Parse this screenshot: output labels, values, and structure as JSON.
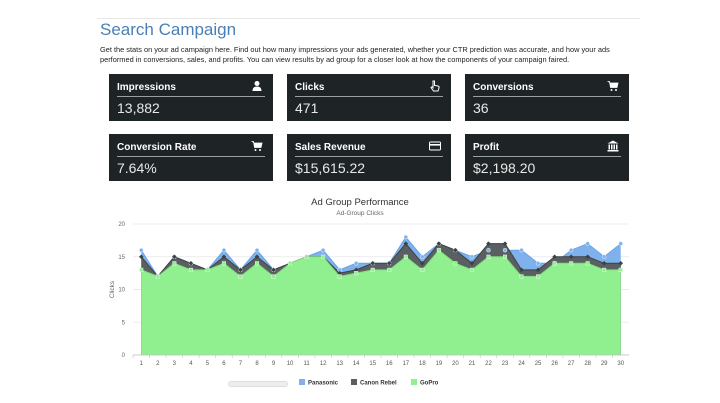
{
  "page": {
    "title": "Search Campaign",
    "description": "Get the stats on your ad campaign here. Find out how many impressions your ads generated, whether your CTR prediction was accurate, and how your ads performed in conversions, sales, and profits. You can view results by ad group for a closer look at how the components of your campaign faired."
  },
  "cards": [
    {
      "label": "Impressions",
      "value": "13,882",
      "icon": "user-icon"
    },
    {
      "label": "Clicks",
      "value": "471",
      "icon": "pointer-hand-icon"
    },
    {
      "label": "Conversions",
      "value": "36",
      "icon": "shopping-cart-icon"
    },
    {
      "label": "Conversion Rate",
      "value": "7.64%",
      "icon": "shopping-cart-icon"
    },
    {
      "label": "Sales Revenue",
      "value": "$15,615.22",
      "icon": "credit-card-icon"
    },
    {
      "label": "Profit",
      "value": "$2,198.20",
      "icon": "bank-icon"
    }
  ],
  "colors": {
    "title": "#4a7fb5",
    "card_bg": "#1e2426",
    "panasonic": "#7fb2ec",
    "canon_rebel": "#555a5c",
    "gopro": "#90ef8f"
  },
  "chart_data": {
    "type": "area",
    "title": "Ad Group Performance",
    "subtitle": "Ad-Group Clicks",
    "ylabel": "Clicks",
    "xlabel": "",
    "ylim": [
      0,
      20
    ],
    "yticks": [
      "0",
      "5",
      "10",
      "15",
      "20"
    ],
    "x": [
      1,
      2,
      3,
      4,
      5,
      6,
      7,
      8,
      9,
      10,
      11,
      12,
      13,
      14,
      15,
      16,
      17,
      18,
      19,
      20,
      21,
      22,
      23,
      24,
      25,
      26,
      27,
      28,
      29,
      30
    ],
    "legend_position": "bottom",
    "series": [
      {
        "name": "Panasonic",
        "values": [
          16,
          12,
          15,
          14,
          13,
          16,
          13,
          16,
          13,
          14,
          15,
          16,
          13,
          14,
          14,
          14,
          18,
          15,
          17,
          16,
          15,
          16,
          16,
          16,
          14,
          14,
          16,
          17,
          15,
          17
        ]
      },
      {
        "name": "Canon Rebel",
        "values": [
          15,
          12,
          15,
          14,
          13,
          15,
          13,
          15,
          13,
          14,
          15,
          15,
          12.5,
          13,
          14,
          14,
          17,
          14,
          17,
          16,
          14,
          17,
          17,
          13,
          13,
          15,
          15,
          15,
          14,
          14
        ]
      },
      {
        "name": "GoPro",
        "values": [
          13,
          12,
          14,
          13,
          13,
          14,
          12,
          14,
          12,
          14,
          15,
          15,
          12,
          12.5,
          13,
          13,
          15,
          13,
          16,
          14,
          13,
          15,
          15,
          12,
          12,
          14,
          14,
          14,
          13,
          13
        ]
      }
    ]
  }
}
